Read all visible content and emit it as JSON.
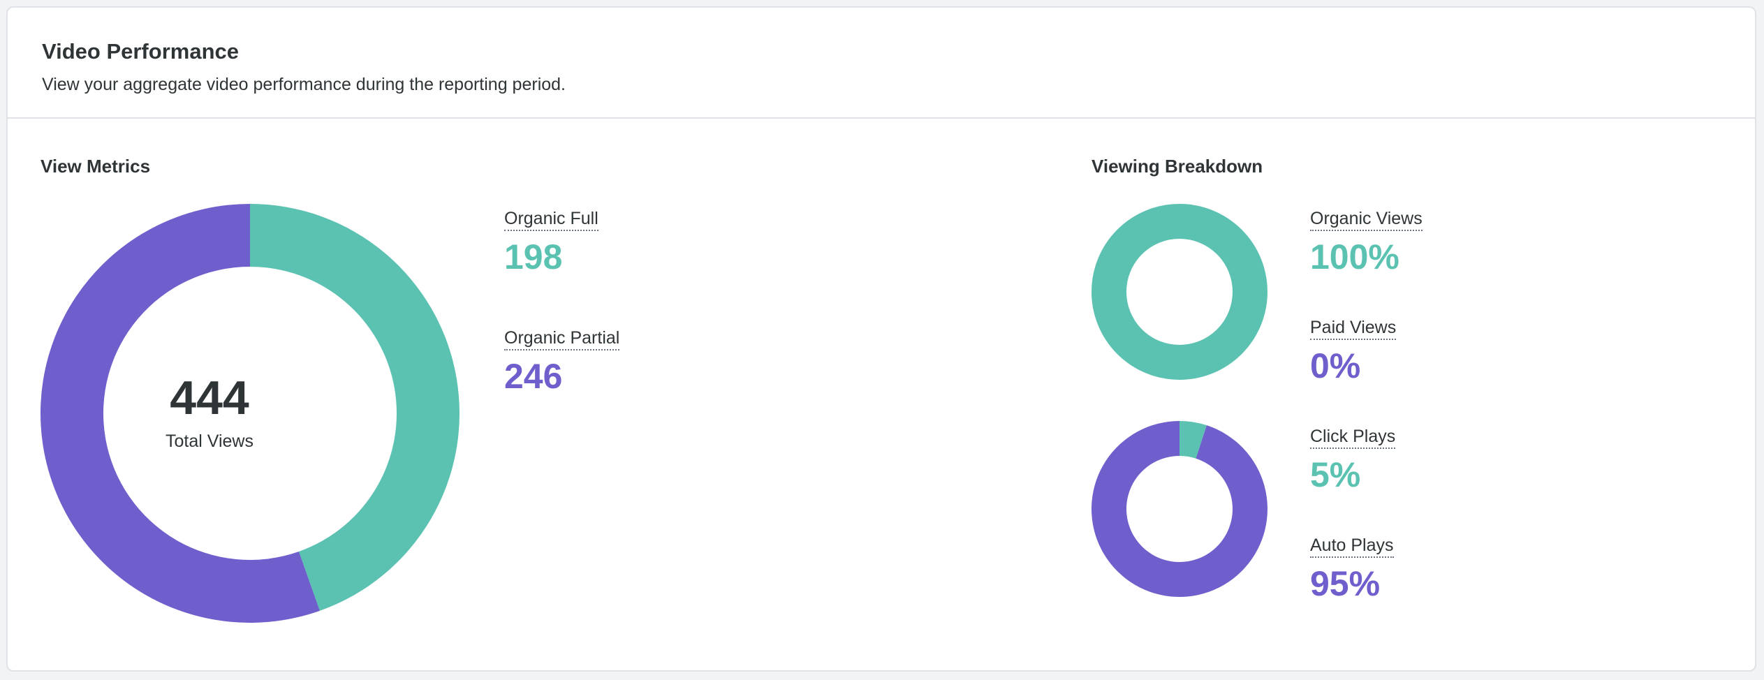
{
  "header": {
    "title": "Video Performance",
    "subtitle": "View your aggregate video performance during the reporting period."
  },
  "colors": {
    "teal": "#5bc2b2",
    "purple": "#6e5fcd"
  },
  "view_metrics": {
    "title": "View Metrics",
    "total_value": "444",
    "total_label": "Total Views",
    "items": [
      {
        "label": "Organic Full",
        "value": "198",
        "color": "#5bc2b2"
      },
      {
        "label": "Organic Partial",
        "value": "246",
        "color": "#6e5fcd"
      }
    ]
  },
  "viewing_breakdown": {
    "title": "Viewing Breakdown",
    "groups": [
      {
        "items": [
          {
            "label": "Organic Views",
            "value": "100%",
            "color": "#5bc2b2"
          },
          {
            "label": "Paid Views",
            "value": "0%",
            "color": "#6e5fcd"
          }
        ]
      },
      {
        "items": [
          {
            "label": "Click Plays",
            "value": "5%",
            "color": "#5bc2b2"
          },
          {
            "label": "Auto Plays",
            "value": "95%",
            "color": "#6e5fcd"
          }
        ]
      }
    ]
  },
  "chart_data": [
    {
      "type": "pie",
      "categories": [
        "Organic Full",
        "Organic Partial"
      ],
      "values": [
        198,
        246
      ],
      "colors": [
        "#5bc2b2",
        "#6e5fcd"
      ]
    },
    {
      "type": "pie",
      "categories": [
        "Organic Views",
        "Paid Views"
      ],
      "values": [
        100,
        0
      ],
      "colors": [
        "#5bc2b2",
        "#6e5fcd"
      ]
    },
    {
      "type": "pie",
      "categories": [
        "Click Plays",
        "Auto Plays"
      ],
      "values": [
        5,
        95
      ],
      "colors": [
        "#5bc2b2",
        "#6e5fcd"
      ]
    }
  ]
}
